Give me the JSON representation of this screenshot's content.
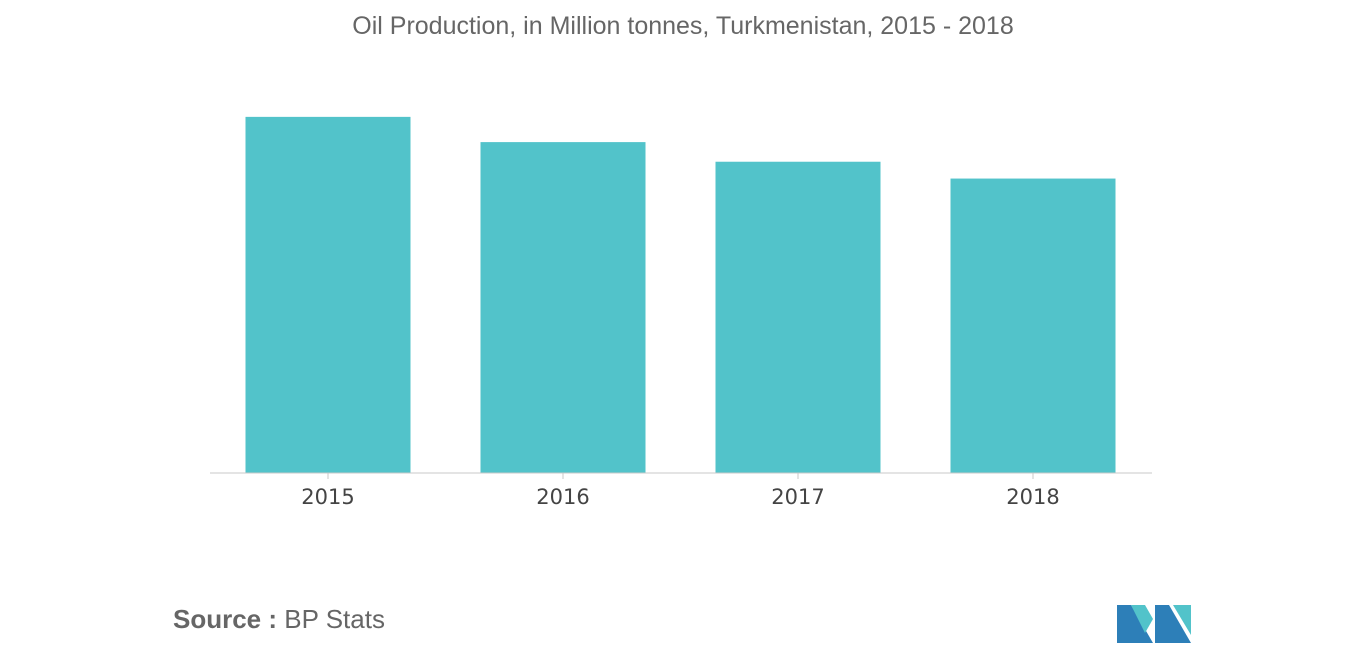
{
  "title": "Oil Production, in Million tonnes, Turkmenistan, 2015 - 2018",
  "source": {
    "label": "Source :",
    "value": "BP Stats"
  },
  "colors": {
    "bar": "#52c3ca",
    "axis": "#c8c8c8",
    "logo_dark": "#2d7fb8",
    "logo_light": "#52c3ca"
  },
  "logo": {
    "icon": "mordor-logo-icon"
  },
  "chart_data": {
    "type": "bar",
    "title": "Oil Production, in Million tonnes, Turkmenistan, 2015 - 2018",
    "categories": [
      "2015",
      "2016",
      "2017",
      "2018"
    ],
    "values": [
      12.7,
      11.8,
      11.1,
      10.5
    ],
    "xlabel": "",
    "ylabel": "",
    "ylim": [
      0,
      14.3
    ],
    "grid": false,
    "legend": "none"
  }
}
